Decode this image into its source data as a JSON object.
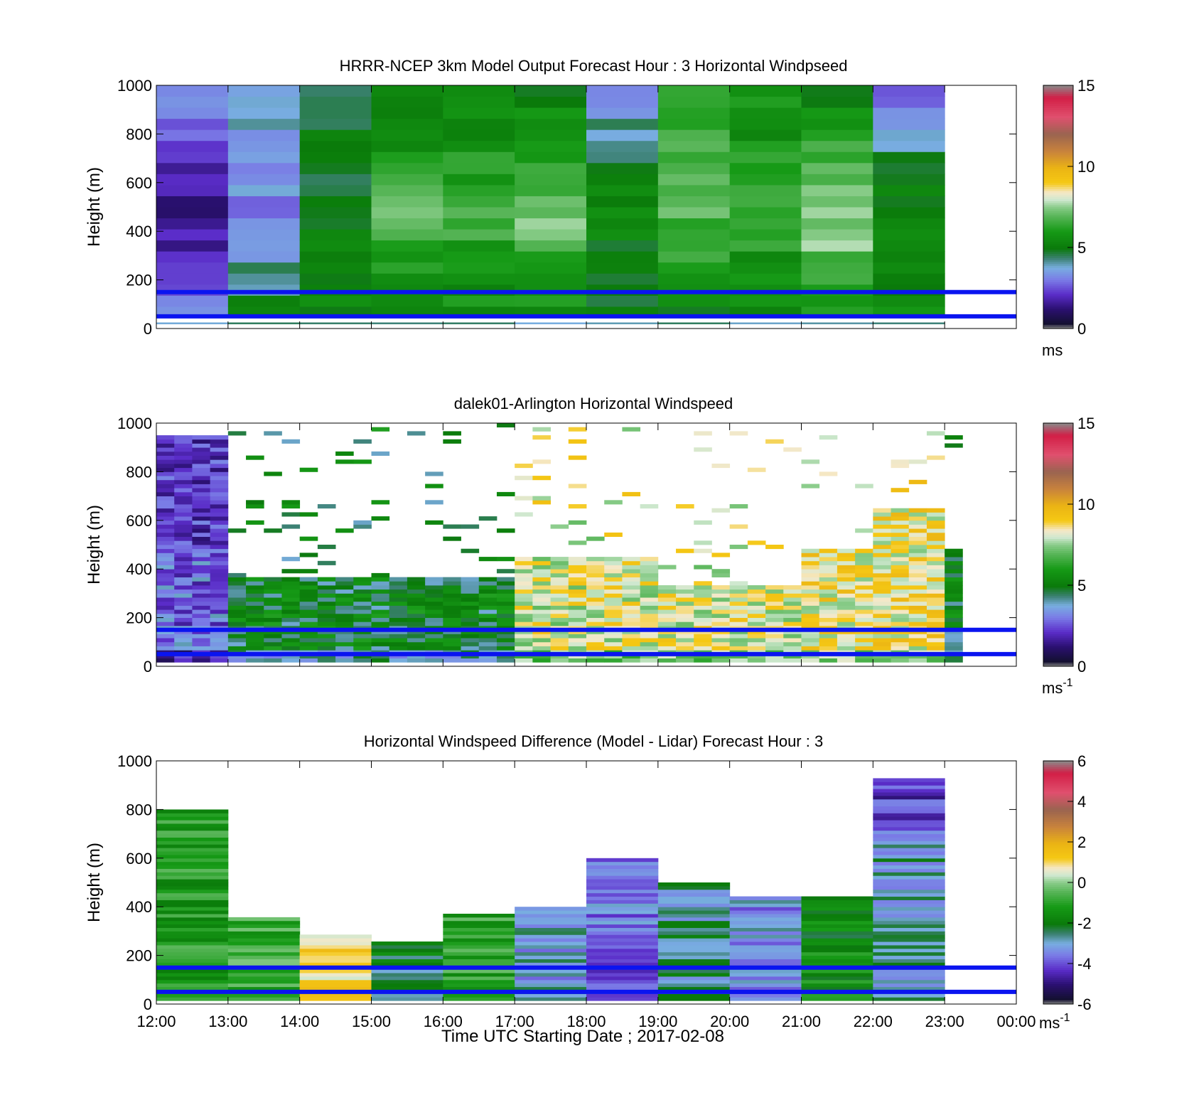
{
  "figure": {
    "xlabel": "Time UTC  Starting Date ; 2017-02-08",
    "x_tick_labels": [
      "12:00",
      "13:00",
      "14:00",
      "15:00",
      "16:00",
      "17:00",
      "18:00",
      "19:00",
      "20:00",
      "21:00",
      "22:00",
      "23:00",
      "00:00"
    ]
  },
  "chart_data": [
    {
      "type": "heatmap",
      "title": "HRRR-NCEP 3km Model Output   Forecast Hour : 3 Horizontal Windpseed",
      "ylabel": "Height (m)",
      "x_range": [
        "12:00",
        "00:00"
      ],
      "ylim": [
        0,
        1000
      ],
      "y_ticks": [
        0,
        200,
        400,
        600,
        800,
        1000
      ],
      "colorbar": {
        "range": [
          0,
          15
        ],
        "ticks": [
          0,
          5,
          10,
          15
        ],
        "unit": "ms",
        "unit_sup": ""
      },
      "reference_lines_m": [
        50,
        150
      ],
      "reference_line_color": "#0a14f0",
      "approx_columns": [
        {
          "start": "12:00",
          "end": "13:00",
          "description": "low speeds (~1-4) aloft, higher near surface"
        },
        {
          "start": "15:00",
          "end": "17:00",
          "description": "~5-8, greens"
        },
        {
          "start": "22:00",
          "end": "23:00",
          "description": "~2-7"
        }
      ]
    },
    {
      "type": "heatmap",
      "title": "dalek01-Arlington  Horizontal Windspeed",
      "ylabel": "Height (m)",
      "x_range": [
        "12:00",
        "00:00"
      ],
      "ylim": [
        0,
        1000
      ],
      "y_ticks": [
        0,
        200,
        400,
        600,
        800,
        1000
      ],
      "colorbar": {
        "range": [
          0,
          15
        ],
        "ticks": [
          0,
          5,
          10,
          15
        ],
        "unit": "ms",
        "unit_sup": "-1"
      },
      "reference_lines_m": [
        50,
        150
      ],
      "reference_line_color": "#0a14f0"
    },
    {
      "type": "heatmap",
      "title": "Horizontal Windspeed Difference (Model - Lidar) Forecast Hour : 3",
      "ylabel": "Height (m)",
      "x_range": [
        "12:00",
        "00:00"
      ],
      "ylim": [
        0,
        1000
      ],
      "y_ticks": [
        0,
        200,
        400,
        600,
        800,
        1000
      ],
      "colorbar": {
        "range": [
          -6,
          6
        ],
        "ticks": [
          -6,
          -4,
          -2,
          0,
          2,
          4,
          6
        ],
        "unit": "ms",
        "unit_sup": "-1"
      },
      "reference_lines_m": [
        50,
        150
      ],
      "reference_line_color": "#0a14f0",
      "column_top_heights_m": [
        805,
        365,
        295,
        265,
        375,
        400,
        600,
        505,
        455,
        450,
        930
      ]
    }
  ]
}
